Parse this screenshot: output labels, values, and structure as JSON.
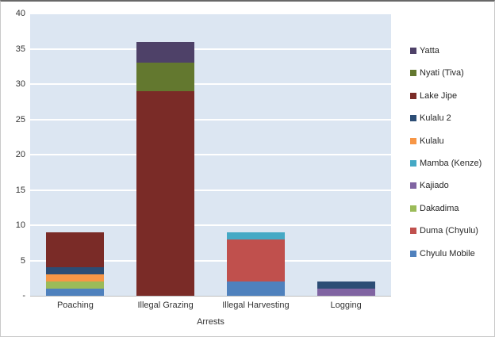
{
  "chart_data": {
    "type": "stacked-bar",
    "title": "",
    "xlabel": "Arrests",
    "ylabel": "",
    "ylim": [
      0,
      40
    ],
    "ytick_interval": 5,
    "yticks": [
      {
        "value": 0,
        "label": "-"
      },
      {
        "value": 5,
        "label": "5"
      },
      {
        "value": 10,
        "label": "10"
      },
      {
        "value": 15,
        "label": "15"
      },
      {
        "value": 20,
        "label": "20"
      },
      {
        "value": 25,
        "label": "25"
      },
      {
        "value": 30,
        "label": "30"
      },
      {
        "value": 35,
        "label": "35"
      },
      {
        "value": 40,
        "label": "40"
      }
    ],
    "categories": [
      "Poaching",
      "Illegal Grazing",
      "Illegal Harvesting",
      "Logging"
    ],
    "series_bottom_to_top": [
      {
        "name": "Chyulu Mobile",
        "color": "#4F81BD",
        "values": [
          1,
          0,
          2,
          0
        ]
      },
      {
        "name": "Duma (Chyulu)",
        "color": "#C0504D",
        "values": [
          0,
          0,
          6,
          0
        ]
      },
      {
        "name": "Dakadima",
        "color": "#9BBB59",
        "values": [
          1,
          0,
          0,
          0
        ]
      },
      {
        "name": "Kajiado",
        "color": "#8064A2",
        "values": [
          0,
          0,
          0,
          1
        ]
      },
      {
        "name": "Mamba (Kenze)",
        "color": "#45A9C5",
        "values": [
          0,
          0,
          1,
          0
        ]
      },
      {
        "name": "Kulalu",
        "color": "#F79646",
        "values": [
          1,
          0,
          0,
          0
        ]
      },
      {
        "name": "Kulalu 2",
        "color": "#2C4D75",
        "values": [
          1,
          0,
          0,
          1
        ]
      },
      {
        "name": "Lake Jipe",
        "color": "#7A2B27",
        "values": [
          5,
          29,
          0,
          0
        ]
      },
      {
        "name": "Nyati (Tiva)",
        "color": "#63782F",
        "values": [
          0,
          4,
          0,
          0
        ]
      },
      {
        "name": "Yatta",
        "color": "#4E4168",
        "values": [
          0,
          3,
          0,
          0
        ]
      }
    ],
    "legend_order_top_to_bottom": [
      "Yatta",
      "Nyati (Tiva)",
      "Lake Jipe",
      "Kulalu 2",
      "Kulalu",
      "Mamba (Kenze)",
      "Kajiado",
      "Dakadima",
      "Duma (Chyulu)",
      "Chyulu Mobile"
    ],
    "category_totals": [
      9,
      36,
      9,
      2
    ],
    "plot_background": "#DCE6F2",
    "gridline_color": "#FFFFFF",
    "legend_position": "right",
    "grid": true
  }
}
